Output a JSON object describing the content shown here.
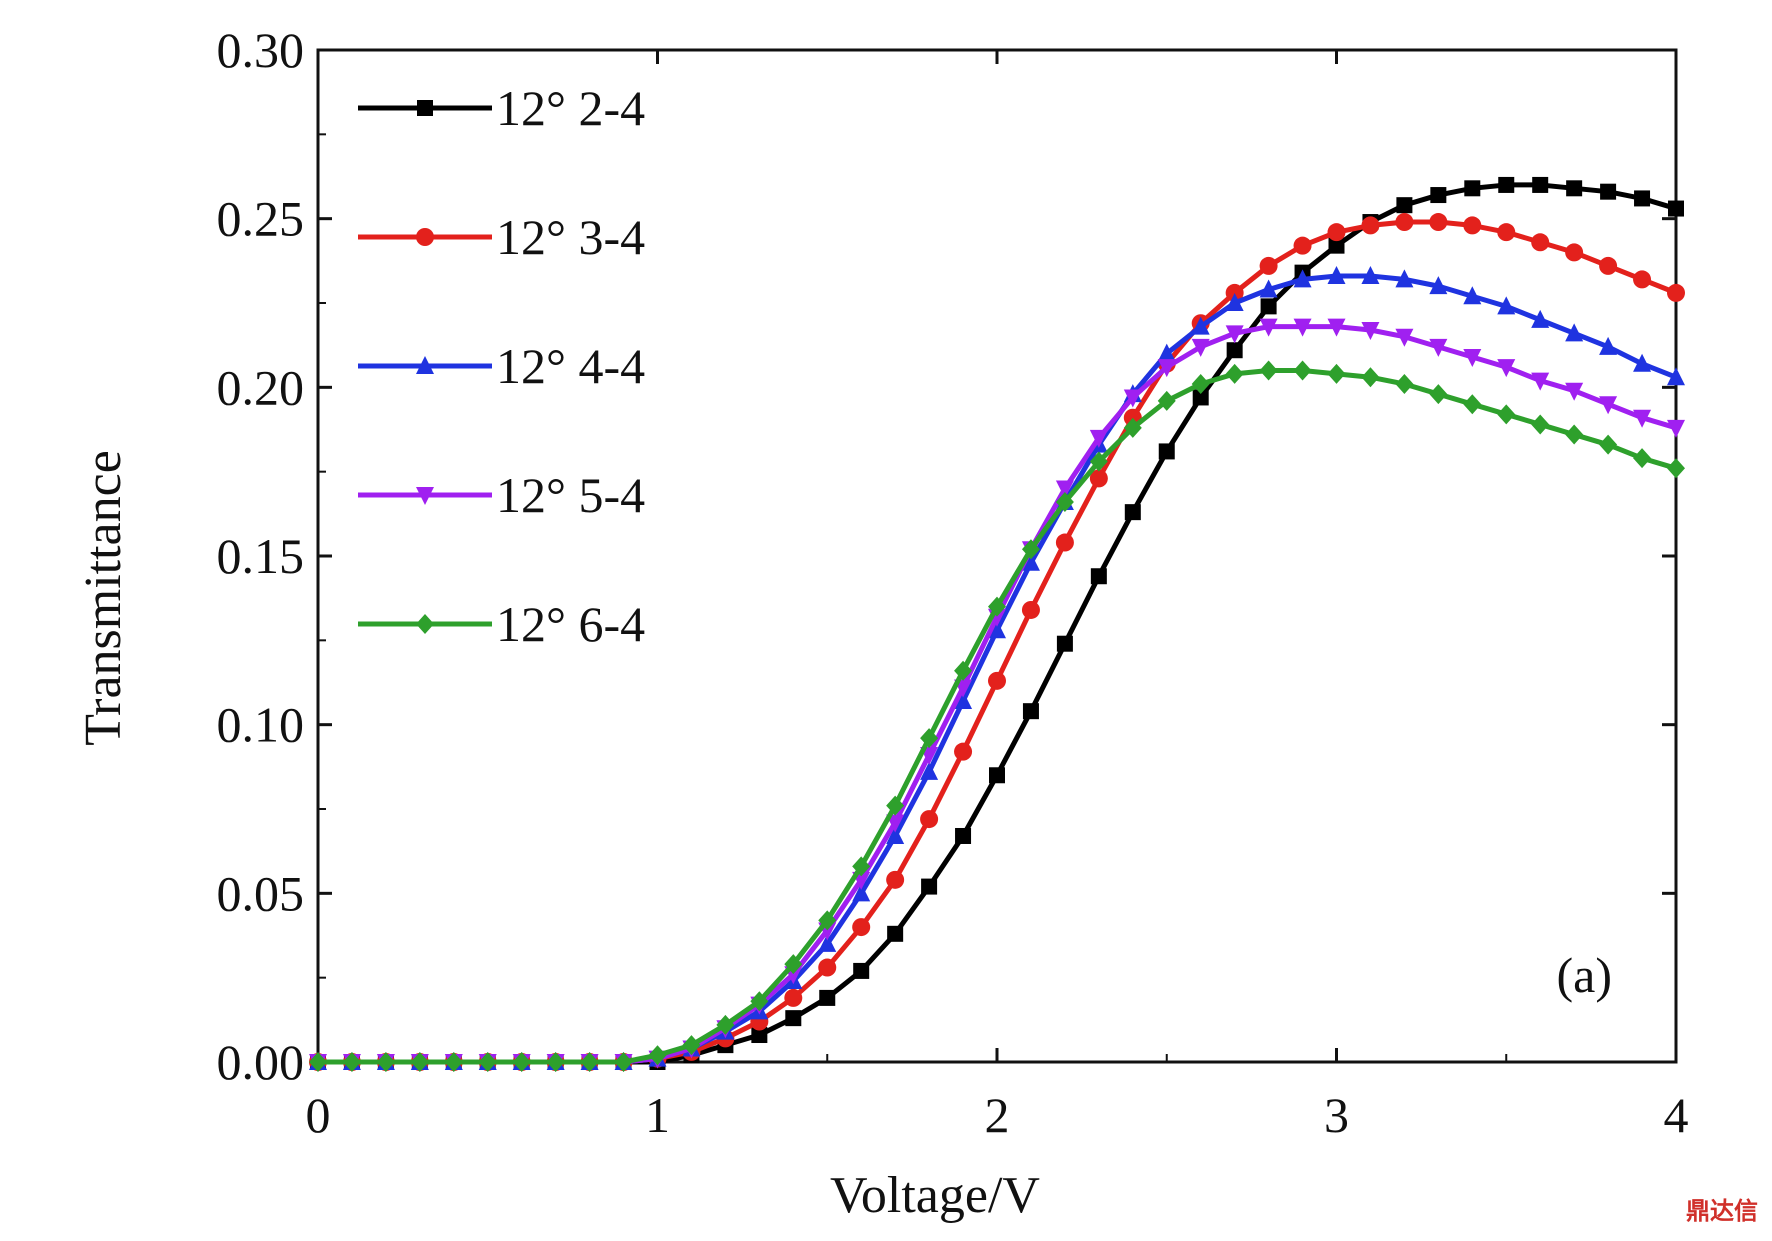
{
  "chart_data": {
    "type": "line",
    "xlabel": "Voltage/V",
    "ylabel": "Transmittance",
    "xlim": [
      0,
      4
    ],
    "ylim": [
      0,
      0.3
    ],
    "xticks": [
      "0",
      "1",
      "2",
      "3",
      "4"
    ],
    "yticks": [
      "0.00",
      "0.05",
      "0.10",
      "0.15",
      "0.20",
      "0.25",
      "0.30"
    ],
    "grid": false,
    "legend_position": "top-left",
    "annotation": "(a)",
    "x": [
      0,
      0.1,
      0.2,
      0.3,
      0.4,
      0.5,
      0.6,
      0.7,
      0.8,
      0.9,
      1.0,
      1.1,
      1.2,
      1.3,
      1.4,
      1.5,
      1.6,
      1.7,
      1.8,
      1.9,
      2.0,
      2.1,
      2.2,
      2.3,
      2.4,
      2.5,
      2.6,
      2.7,
      2.8,
      2.9,
      3.0,
      3.1,
      3.2,
      3.3,
      3.4,
      3.5,
      3.6,
      3.7,
      3.8,
      3.9,
      4.0
    ],
    "series": [
      {
        "name": "12° 2-4",
        "color": "#000000",
        "marker": "square",
        "values": [
          0,
          0,
          0,
          0,
          0,
          0,
          0,
          0,
          0,
          0,
          0,
          0.002,
          0.005,
          0.008,
          0.013,
          0.019,
          0.027,
          0.038,
          0.052,
          0.067,
          0.085,
          0.104,
          0.124,
          0.144,
          0.163,
          0.181,
          0.197,
          0.211,
          0.224,
          0.234,
          0.242,
          0.249,
          0.254,
          0.257,
          0.259,
          0.26,
          0.26,
          0.259,
          0.258,
          0.256,
          0.253
        ]
      },
      {
        "name": "12° 3-4",
        "color": "#e3211c",
        "marker": "circle",
        "values": [
          0,
          0,
          0,
          0,
          0,
          0,
          0,
          0,
          0,
          0,
          0.001,
          0.003,
          0.007,
          0.012,
          0.019,
          0.028,
          0.04,
          0.054,
          0.072,
          0.092,
          0.113,
          0.134,
          0.154,
          0.173,
          0.191,
          0.207,
          0.219,
          0.228,
          0.236,
          0.242,
          0.246,
          0.248,
          0.249,
          0.249,
          0.248,
          0.246,
          0.243,
          0.24,
          0.236,
          0.232,
          0.228
        ]
      },
      {
        "name": "12° 4-4",
        "color": "#1f33e0",
        "marker": "triangle-up",
        "values": [
          0,
          0,
          0,
          0,
          0,
          0,
          0,
          0,
          0,
          0,
          0.001,
          0.004,
          0.009,
          0.015,
          0.024,
          0.035,
          0.05,
          0.067,
          0.086,
          0.107,
          0.128,
          0.148,
          0.166,
          0.183,
          0.198,
          0.21,
          0.218,
          0.225,
          0.229,
          0.232,
          0.233,
          0.233,
          0.232,
          0.23,
          0.227,
          0.224,
          0.22,
          0.216,
          0.212,
          0.207,
          0.203
        ]
      },
      {
        "name": "12° 5-4",
        "color": "#a020f0",
        "marker": "triangle-down",
        "values": [
          0,
          0,
          0,
          0,
          0,
          0,
          0,
          0,
          0,
          0,
          0.001,
          0.004,
          0.01,
          0.017,
          0.026,
          0.039,
          0.054,
          0.071,
          0.091,
          0.111,
          0.132,
          0.152,
          0.17,
          0.185,
          0.197,
          0.206,
          0.212,
          0.216,
          0.218,
          0.218,
          0.218,
          0.217,
          0.215,
          0.212,
          0.209,
          0.206,
          0.202,
          0.199,
          0.195,
          0.191,
          0.188
        ]
      },
      {
        "name": "12° 6-4",
        "color": "#2ea02c",
        "marker": "diamond",
        "values": [
          0,
          0,
          0,
          0,
          0,
          0,
          0,
          0,
          0,
          0,
          0.002,
          0.005,
          0.011,
          0.018,
          0.029,
          0.042,
          0.058,
          0.076,
          0.096,
          0.116,
          0.135,
          0.152,
          0.166,
          0.178,
          0.188,
          0.196,
          0.201,
          0.204,
          0.205,
          0.205,
          0.204,
          0.203,
          0.201,
          0.198,
          0.195,
          0.192,
          0.189,
          0.186,
          0.183,
          0.179,
          0.176
        ]
      }
    ]
  },
  "watermark": "鼎达信"
}
